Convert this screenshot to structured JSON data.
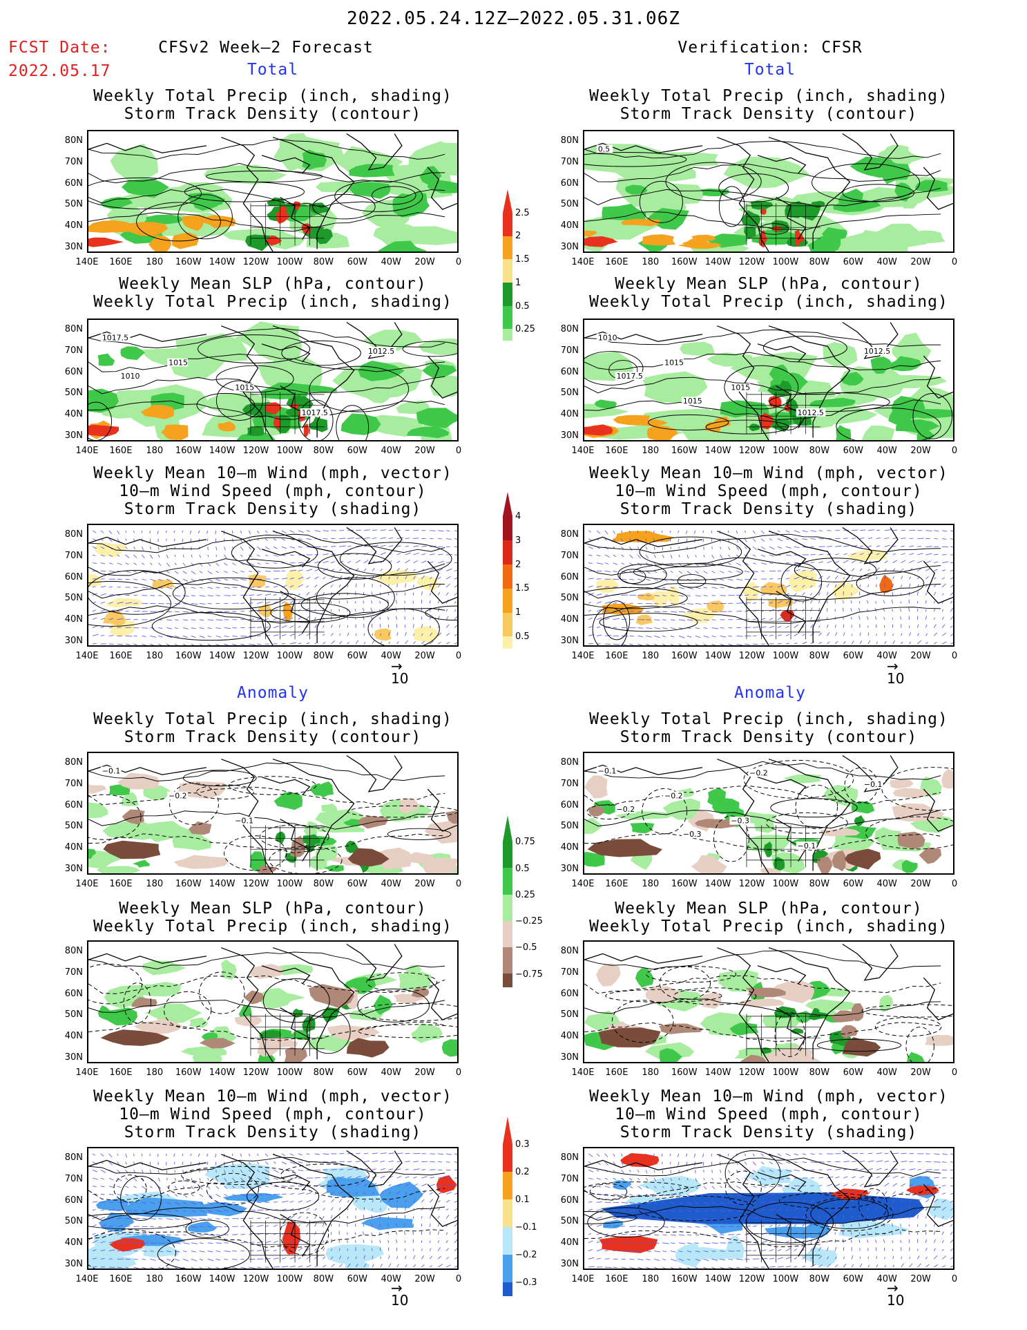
{
  "header": {
    "period": "2022.05.24.12Z–2022.05.31.06Z",
    "fcst_label": "FCST Date:",
    "fcst_date": "2022.05.17",
    "left_title": "CFSv2 Week–2 Forecast",
    "right_title": "Verification: CFSR"
  },
  "sections": {
    "total": "Total",
    "anomaly": "Anomaly"
  },
  "panel_titles": {
    "precip_storm": [
      "Weekly Total Precip (inch, shading)",
      "Storm Track Density (contour)"
    ],
    "slp_precip": [
      "Weekly Mean SLP (hPa, contour)",
      "Weekly Total Precip (inch, shading)"
    ],
    "wind_storm": [
      "Weekly Mean 10–m Wind (mph, vector)",
      "10–m Wind Speed (mph, contour)",
      "Storm Track Density (shading)"
    ]
  },
  "lat_labels": [
    "80N",
    "70N",
    "60N",
    "50N",
    "40N",
    "30N"
  ],
  "lon_labels": [
    "140E",
    "160E",
    "180",
    "160W",
    "140W",
    "120W",
    "100W",
    "80W",
    "60W",
    "40W",
    "20W",
    "0"
  ],
  "vector_ref": "10",
  "colorbars": {
    "precip_total": {
      "labels": [
        "2.5",
        "2",
        "1.5",
        "1",
        "0.5",
        "0.25"
      ],
      "colors": [
        "#e8321e",
        "#f5a21e",
        "#f9e08a",
        "#1e9a2a",
        "#40c84a",
        "#a8eca0"
      ]
    },
    "storm_total": {
      "labels": [
        "4",
        "3",
        "2",
        "1.5",
        "1",
        "0.5"
      ],
      "colors": [
        "#a0141e",
        "#dc2a18",
        "#f06a14",
        "#f5a21e",
        "#f9c860",
        "#fdf0a8"
      ]
    },
    "precip_anom": {
      "labels": [
        "0.75",
        "0.5",
        "0.25",
        "−0.25",
        "−0.5",
        "−0.75"
      ],
      "colors": [
        "#1e9a2a",
        "#40c84a",
        "#a8eca0",
        "#e8cfc4",
        "#b08878",
        "#7a4c3c"
      ]
    },
    "storm_anom": {
      "labels": [
        "0.3",
        "0.2",
        "0.1",
        "−0.1",
        "−0.2",
        "−0.3"
      ],
      "colors": [
        "#e8321e",
        "#f5a21e",
        "#f9e08a",
        "#b8e8f8",
        "#4aa0ec",
        "#1e5ccc"
      ]
    }
  },
  "contour_labels": {
    "l2": [
      "1017.5",
      "1015",
      "1015",
      "1017.5",
      "1012.5",
      "1010"
    ],
    "r1": [
      "0.5"
    ],
    "r2": [
      "1010",
      "1015",
      "1015",
      "1012.5",
      "1012.5",
      "1017.5",
      "1015"
    ],
    "l4": [
      "−0.1",
      "−0.2",
      "−0.1"
    ],
    "r4": [
      "−0.1",
      "−0.2",
      "−0.3",
      "−0.1",
      "−0.1",
      "−0.2",
      "−0.3",
      "−0.2"
    ]
  }
}
